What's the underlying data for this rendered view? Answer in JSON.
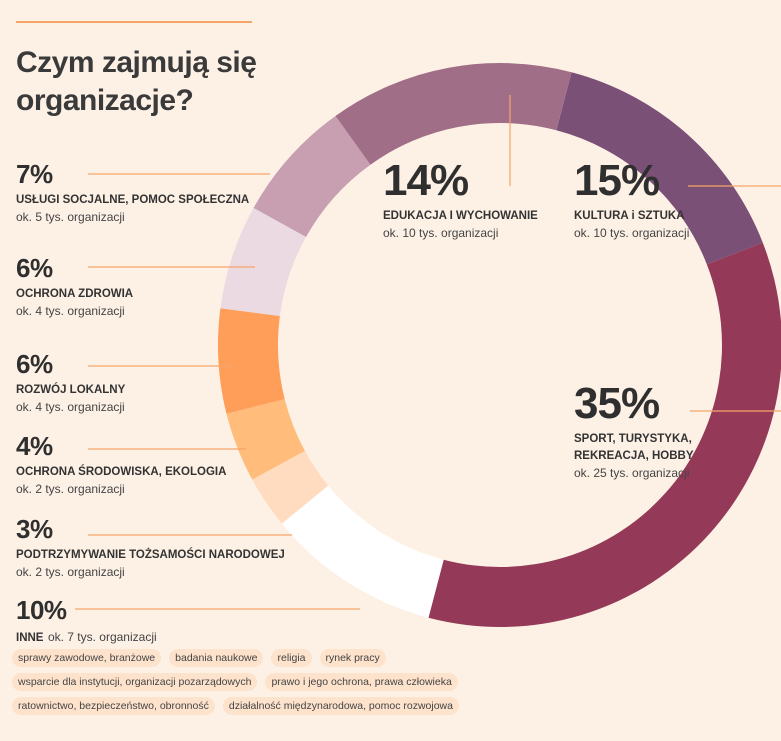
{
  "title_line1": "Czym zajmują się",
  "title_line2": "organizacje?",
  "chart_data": {
    "type": "pie",
    "style": "donut",
    "title": "Czym zajmują się organizacje?",
    "slices": [
      {
        "label": "KULTURA i SZTUKA",
        "value": 15,
        "count": "ok. 10 tys. organizacji",
        "color": "#7a5077"
      },
      {
        "label": "SPORT, TURYSTYKA, REKREACJA, HOBBY",
        "value": 35,
        "count": "ok. 25 tys. organizacji",
        "color": "#943a58"
      },
      {
        "label": "INNE",
        "value": 10,
        "count": "ok. 7 tys. organizacji",
        "color": "#ffffff"
      },
      {
        "label": "PODTRZYMYWANIE TOŻSAMOŚCI NARODOWEJ",
        "value": 3,
        "count": "ok. 2 tys. organizacji",
        "color": "#ffdcbf"
      },
      {
        "label": "OCHRONA ŚRODOWISKA, EKOLOGIA",
        "value": 4,
        "count": "ok. 2 tys. organizacji",
        "color": "#ffbc7a"
      },
      {
        "label": "ROZWÓJ LOKALNY",
        "value": 6,
        "count": "ok. 4 tys. organizacji",
        "color": "#ff9e58"
      },
      {
        "label": "OCHRONA ZDROWIA",
        "value": 6,
        "count": "ok. 4 tys. organizacji",
        "color": "#ecdae2"
      },
      {
        "label": "USŁUGI SOCJALNE, POMOC SPOŁECZNA",
        "value": 7,
        "count": "ok. 5 tys. organizacji",
        "color": "#c79fb1"
      },
      {
        "label": "EDUKACJA I WYCHOWANIE",
        "value": 14,
        "count": "ok. 10 tys. organizacji",
        "color": "#a06f87"
      }
    ]
  },
  "labels": {
    "edu": {
      "pct": "14%",
      "name": "EDUKACJA I WYCHOWANIE",
      "count": "ok. 10 tys. organizacji"
    },
    "kul": {
      "pct": "15%",
      "name": "KULTURA i SZTUKA",
      "count": "ok. 10 tys. organizacji"
    },
    "sport": {
      "pct": "35%",
      "name1": "SPORT, TURYSTYKA,",
      "name2": "REKREACJA, HOBBY",
      "count": "ok. 25 tys. organizacji"
    },
    "soc": {
      "pct": "7%",
      "name": "USŁUGI SOCJALNE, POMOC SPOŁECZNA",
      "count": "ok. 5 tys. organizacji"
    },
    "zdr": {
      "pct": "6%",
      "name": "OCHRONA ZDROWIA",
      "count": "ok. 4 tys. organizacji"
    },
    "roz": {
      "pct": "6%",
      "name": "ROZWÓJ LOKALNY",
      "count": "ok. 4 tys. organizacji"
    },
    "eko": {
      "pct": "4%",
      "name": "OCHRONA ŚRODOWISKA, EKOLOGIA",
      "count": "ok. 2 tys. organizacji"
    },
    "tozs": {
      "pct": "3%",
      "name": "PODTRZYMYWANIE TOŻSAMOŚCI NARODOWEJ",
      "count": "ok. 2 tys. organizacji"
    },
    "inne": {
      "pct": "10%",
      "name": "INNE",
      "count": "ok. 7 tys. organizacji"
    }
  },
  "tags": [
    [
      "sprawy zawodowe, branżowe",
      "badania naukowe",
      "religia",
      "rynek pracy"
    ],
    [
      "wsparcie dla instytucji, organizacji pozarządowych",
      "prawo i jego ochrona, prawa człowieka"
    ],
    [
      "ratownictwo, bezpieczeństwo, obronność",
      "działalność międzynarodowa, pomoc rozwojowa"
    ]
  ],
  "colors": {
    "background": "#fdf1e6",
    "leader_line": "#f5a56a",
    "tag_bg": "#fde2cc"
  }
}
